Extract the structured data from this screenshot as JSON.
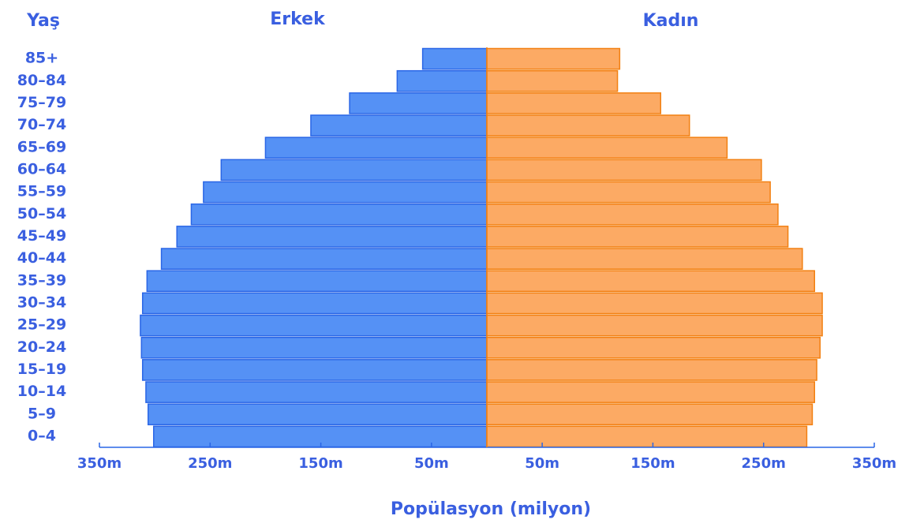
{
  "chart_data": {
    "type": "pyramid",
    "title_left": "Erkek",
    "title_right": "Kadın",
    "y_label": "Yaş",
    "x_label": "Popülasyon (milyon)",
    "categories": [
      "0–4",
      "5–9",
      "10–14",
      "15–19",
      "20–24",
      "25–29",
      "30–34",
      "35–39",
      "40–44",
      "45–49",
      "50–54",
      "55–59",
      "60–64",
      "65–69",
      "70–74",
      "75–79",
      "80–84",
      "85+"
    ],
    "series": [
      {
        "name": "Erkek",
        "side": "left",
        "color": "#5591f5",
        "stroke": "#2a66e6",
        "values": [
          301,
          306,
          308,
          311,
          312,
          313,
          311,
          307,
          294,
          280,
          267,
          256,
          240,
          200,
          159,
          124,
          81,
          58
        ]
      },
      {
        "name": "Kadın",
        "side": "right",
        "color": "#fcaa64",
        "stroke": "#f28012",
        "values": [
          289,
          294,
          296,
          298,
          301,
          303,
          303,
          296,
          285,
          272,
          263,
          256,
          248,
          217,
          183,
          157,
          118,
          120
        ]
      }
    ],
    "xlim": [
      0,
      350
    ],
    "xticks": [
      {
        "value": 50,
        "label": "50m"
      },
      {
        "value": 150,
        "label": "150m"
      },
      {
        "value": 250,
        "label": "250m"
      },
      {
        "value": 350,
        "label": "350m"
      }
    ]
  }
}
